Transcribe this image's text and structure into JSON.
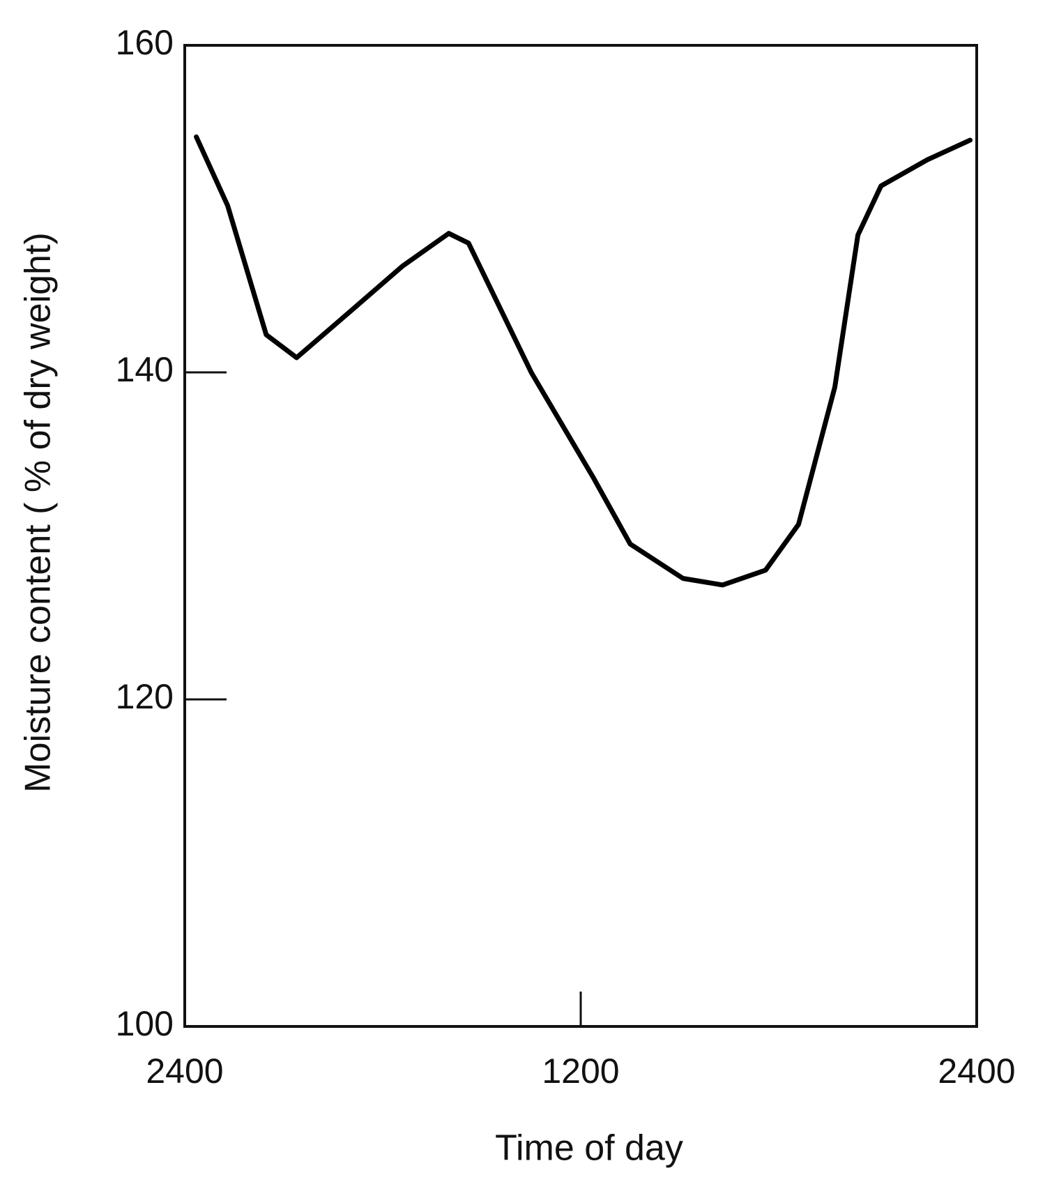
{
  "chart_data": {
    "type": "line",
    "x_label": "Time of day",
    "y_label": "Moisture content ( % of dry weight)",
    "xlim": [
      0,
      24
    ],
    "xticks": [
      {
        "value": 0,
        "label": "2400"
      },
      {
        "value": 12,
        "label": "1200"
      },
      {
        "value": 24,
        "label": "2400"
      }
    ],
    "ylim": [
      100,
      160
    ],
    "yticks": [
      100,
      120,
      140,
      160
    ],
    "grid": false,
    "series": [
      {
        "color": "#000000",
        "x": [
          0.35,
          1.3,
          2.47,
          3.39,
          4.77,
          6.6,
          8.0,
          8.6,
          10.5,
          12.4,
          13.5,
          15.1,
          16.3,
          17.6,
          18.6,
          19.7,
          20.4,
          21.1,
          22.5,
          23.8
        ],
        "values": [
          154.4,
          150.2,
          142.3,
          140.9,
          143.3,
          146.5,
          148.5,
          147.9,
          140.0,
          133.5,
          129.5,
          127.4,
          127.0,
          127.9,
          130.7,
          139.1,
          148.4,
          151.4,
          153.0,
          154.2
        ]
      }
    ]
  }
}
